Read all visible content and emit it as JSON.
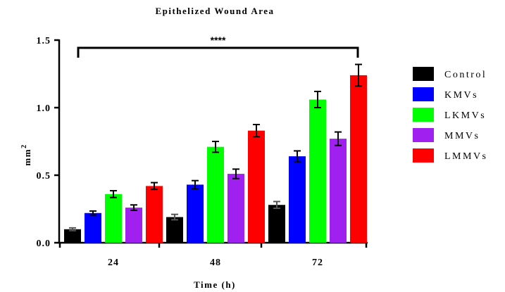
{
  "chart_data": {
    "type": "bar",
    "title": "Epithelized Wound Area",
    "xlabel": "Time (h)",
    "ylabel": "mm",
    "ylabel_superscript": "2",
    "categories": [
      "24",
      "48",
      "72"
    ],
    "ylim": [
      0,
      1.5
    ],
    "yticks": [
      "0.0",
      "0.5",
      "1.0",
      "1.5"
    ],
    "series": [
      {
        "name": "Control",
        "color": "#000000",
        "values": [
          0.1,
          0.19,
          0.28
        ],
        "errors": [
          0.01,
          0.02,
          0.025
        ]
      },
      {
        "name": "KMVs",
        "color": "#0000ff",
        "values": [
          0.22,
          0.43,
          0.64
        ],
        "errors": [
          0.015,
          0.03,
          0.04
        ]
      },
      {
        "name": "LKMVs",
        "color": "#00ff00",
        "values": [
          0.36,
          0.71,
          1.06
        ],
        "errors": [
          0.025,
          0.04,
          0.06
        ]
      },
      {
        "name": "MMVs",
        "color": "#a020f0",
        "values": [
          0.26,
          0.51,
          0.77
        ],
        "errors": [
          0.02,
          0.035,
          0.05
        ]
      },
      {
        "name": "LMMVs",
        "color": "#ff0000",
        "values": [
          0.42,
          0.83,
          1.24
        ],
        "errors": [
          0.025,
          0.045,
          0.08
        ]
      }
    ],
    "significance": {
      "label": "****"
    },
    "legend_position": "right",
    "grid": false
  }
}
